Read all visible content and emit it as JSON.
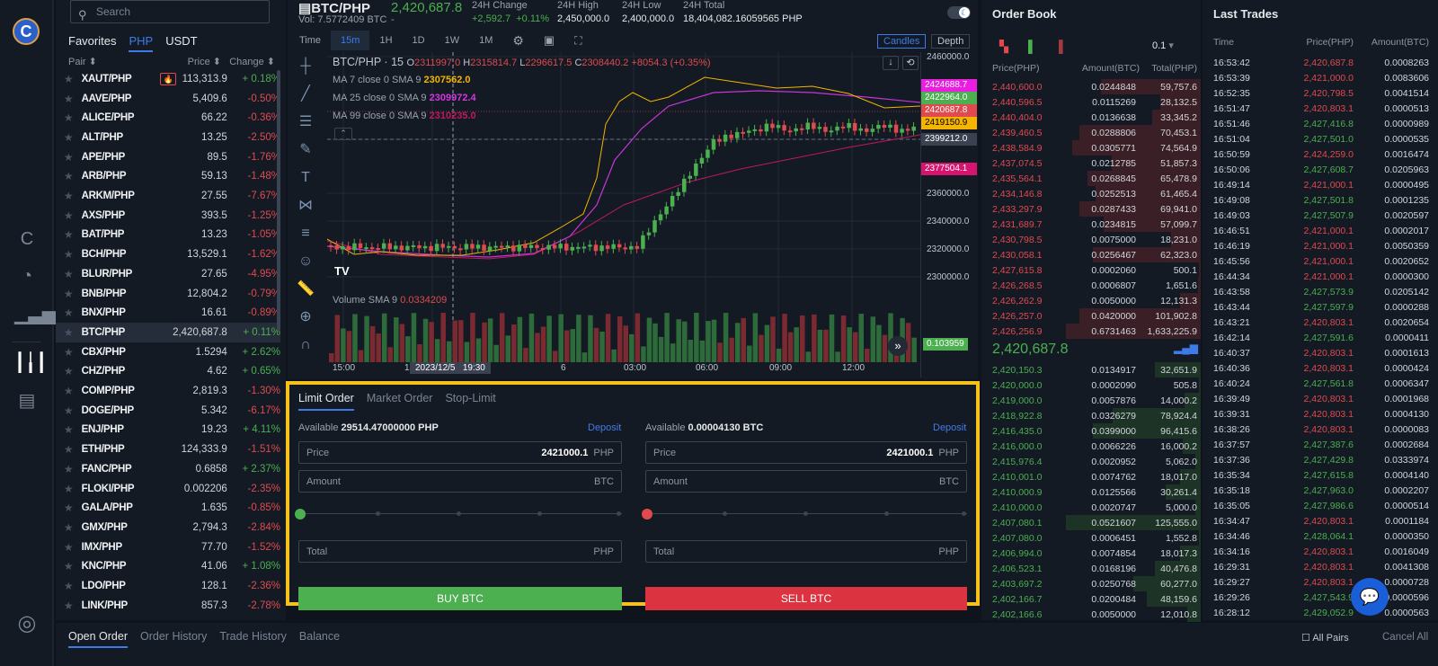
{
  "rail": {
    "logo": "C",
    "icons": [
      "coin-icon",
      "portfolio-pie-icon",
      "bar-stats-icon",
      "candles-trade-icon",
      "ledger-document-icon",
      "user-profile-icon"
    ]
  },
  "market": {
    "search_placeholder": "Search",
    "tabs": [
      {
        "label": "Favorites"
      },
      {
        "label": "PHP",
        "active": true
      },
      {
        "label": "USDT"
      }
    ],
    "headers": {
      "pair": "Pair ⬍",
      "price": "Price ⬍",
      "change": "Change ⬍"
    },
    "rows": [
      {
        "pair": "XAUT/PHP",
        "price": "113,313.9",
        "change": "+ 0.18%",
        "up": true,
        "hot": true
      },
      {
        "pair": "AAVE/PHP",
        "price": "5,409.6",
        "change": "-0.50%",
        "up": false
      },
      {
        "pair": "ALICE/PHP",
        "price": "66.22",
        "change": "-0.36%",
        "up": false
      },
      {
        "pair": "ALT/PHP",
        "price": "13.25",
        "change": "-2.50%",
        "up": false
      },
      {
        "pair": "APE/PHP",
        "price": "89.5",
        "change": "-1.76%",
        "up": false
      },
      {
        "pair": "ARB/PHP",
        "price": "59.13",
        "change": "-1.48%",
        "up": false
      },
      {
        "pair": "ARKM/PHP",
        "price": "27.55",
        "change": "-7.67%",
        "up": false
      },
      {
        "pair": "AXS/PHP",
        "price": "393.5",
        "change": "-1.25%",
        "up": false
      },
      {
        "pair": "BAT/PHP",
        "price": "13.23",
        "change": "-1.05%",
        "up": false
      },
      {
        "pair": "BCH/PHP",
        "price": "13,529.1",
        "change": "-1.62%",
        "up": false
      },
      {
        "pair": "BLUR/PHP",
        "price": "27.65",
        "change": "-4.95%",
        "up": false
      },
      {
        "pair": "BNB/PHP",
        "price": "12,804.2",
        "change": "-0.79%",
        "up": false
      },
      {
        "pair": "BNX/PHP",
        "price": "16.61",
        "change": "-0.89%",
        "up": false
      },
      {
        "pair": "BTC/PHP",
        "price": "2,420,687.8",
        "change": "+ 0.11%",
        "up": true,
        "selected": true
      },
      {
        "pair": "CBX/PHP",
        "price": "1.5294",
        "change": "+ 2.62%",
        "up": true
      },
      {
        "pair": "CHZ/PHP",
        "price": "4.62",
        "change": "+ 0.65%",
        "up": true
      },
      {
        "pair": "COMP/PHP",
        "price": "2,819.3",
        "change": "-1.30%",
        "up": false
      },
      {
        "pair": "DOGE/PHP",
        "price": "5.342",
        "change": "-6.17%",
        "up": false
      },
      {
        "pair": "ENJ/PHP",
        "price": "19.23",
        "change": "+ 4.11%",
        "up": true
      },
      {
        "pair": "ETH/PHP",
        "price": "124,333.9",
        "change": "-1.51%",
        "up": false
      },
      {
        "pair": "FANC/PHP",
        "price": "0.6858",
        "change": "+ 2.37%",
        "up": true
      },
      {
        "pair": "FLOKI/PHP",
        "price": "0.002206",
        "change": "-2.35%",
        "up": false
      },
      {
        "pair": "GALA/PHP",
        "price": "1.635",
        "change": "-0.85%",
        "up": false
      },
      {
        "pair": "GMX/PHP",
        "price": "2,794.3",
        "change": "-2.84%",
        "up": false
      },
      {
        "pair": "IMX/PHP",
        "price": "77.70",
        "change": "-1.52%",
        "up": false
      },
      {
        "pair": "KNC/PHP",
        "price": "41.06",
        "change": "+ 1.08%",
        "up": true
      },
      {
        "pair": "LDO/PHP",
        "price": "128.1",
        "change": "-2.36%",
        "up": false
      },
      {
        "pair": "LINK/PHP",
        "price": "857.3",
        "change": "-2.78%",
        "up": false
      }
    ]
  },
  "ticker": {
    "pair": "BTC/PHP",
    "volume": "Vol: 7.5772409 BTC",
    "last_price": "2,420,687.8",
    "last_sub": "-",
    "change_label": "24H Change",
    "change_abs": "+2,592.7",
    "change_pct": "+0.11%",
    "high_label": "24H High",
    "high": "2,450,000.0",
    "low_label": "24H Low",
    "low": "2,400,000.0",
    "total_label": "24H Total",
    "total": "18,404,082.16059565 PHP"
  },
  "chart_toolbar": {
    "timeframes": [
      {
        "label": "Time"
      },
      {
        "label": "15m",
        "active": true
      },
      {
        "label": "1H"
      },
      {
        "label": "1D"
      },
      {
        "label": "1W"
      },
      {
        "label": "1M"
      }
    ],
    "candles_label": "Candles",
    "depth_label": "Depth"
  },
  "chart": {
    "symbol": "BTC/PHP",
    "interval": "15",
    "o_label": "O",
    "o": "2311997.0",
    "h_label": "H",
    "h": "2315814.7",
    "l_label": "L",
    "l": "2296617.5",
    "c_label": "C",
    "c": "2308440.2",
    "delta": "+8054.3 (+0.35%)",
    "ma7_label": "MA 7 close 0 SMA 9",
    "ma7": "2307562.0",
    "ma25_label": "MA 25 close 0 SMA 9",
    "ma25": "2309972.4",
    "ma99_label": "MA 99 close 0 SMA 9",
    "ma99": "2310235.0",
    "volume_label": "Volume",
    "volume_sma": "SMA 9",
    "volume_val": "0.0334209",
    "y_ticks": [
      "2460000.0",
      "2360000.0",
      "2340000.0",
      "2320000.0",
      "2300000.0"
    ],
    "tags": [
      {
        "value": "2424688.7",
        "color": "#e91ee0"
      },
      {
        "value": "2422964.0",
        "color": "#4caf50"
      },
      {
        "value": "2420687.8",
        "color": "#e04a4f"
      },
      {
        "value": "2419150.9",
        "color": "#f4b400"
      },
      {
        "value": "2399212.0",
        "color": "#3a4150"
      },
      {
        "value": "2377504.1",
        "color": "#d6136f"
      }
    ],
    "volume_tag": "0.103959",
    "x_ticks": [
      "15:00",
      "1",
      "6",
      "03:00",
      "06:00",
      "09:00",
      "12:00"
    ],
    "crosshair_label": "2023/12/5   19:30"
  },
  "order_form": {
    "tabs": [
      {
        "label": "Limit Order",
        "active": true
      },
      {
        "label": "Market Order"
      },
      {
        "label": "Stop-Limit"
      }
    ],
    "buy": {
      "available_label": "Available",
      "available": "29514.47000000 PHP",
      "deposit": "Deposit",
      "price_label": "Price",
      "price": "2421000.1",
      "price_unit": "PHP",
      "amount_label": "Amount",
      "amount_unit": "BTC",
      "total_label": "Total",
      "total_unit": "PHP",
      "button": "BUY BTC"
    },
    "sell": {
      "available_label": "Available",
      "available": "0.00004130 BTC",
      "deposit": "Deposit",
      "price_label": "Price",
      "price": "2421000.1",
      "price_unit": "PHP",
      "amount_label": "Amount",
      "amount_unit": "BTC",
      "total_label": "Total",
      "total_unit": "PHP",
      "button": "SELL BTC"
    }
  },
  "order_book": {
    "title": "Order Book",
    "precision": "0.1",
    "headers": {
      "price": "Price(PHP)",
      "amount": "Amount(BTC)",
      "total": "Total(PHP)"
    },
    "asks": [
      {
        "price": "2,440,600.0",
        "amount": "0.0244848",
        "total": "59,757.6",
        "depth": 0.74
      },
      {
        "price": "2,440,596.5",
        "amount": "0.0115269",
        "total": "28,132.5",
        "depth": 0.3
      },
      {
        "price": "2,440,404.0",
        "amount": "0.0136638",
        "total": "33,345.2",
        "depth": 0.36
      },
      {
        "price": "2,439,460.5",
        "amount": "0.0288806",
        "total": "70,453.1",
        "depth": 0.9
      },
      {
        "price": "2,438,584.9",
        "amount": "0.0305771",
        "total": "74,564.9",
        "depth": 0.95
      },
      {
        "price": "2,437,074.5",
        "amount": "0.0212785",
        "total": "51,857.3",
        "depth": 0.66
      },
      {
        "price": "2,435,564.1",
        "amount": "0.0268845",
        "total": "65,478.9",
        "depth": 0.84
      },
      {
        "price": "2,434,146.8",
        "amount": "0.0252513",
        "total": "61,465.4",
        "depth": 0.78
      },
      {
        "price": "2,433,297.9",
        "amount": "0.0287433",
        "total": "69,941.0",
        "depth": 0.9
      },
      {
        "price": "2,431,689.7",
        "amount": "0.0234815",
        "total": "57,099.7",
        "depth": 0.72
      },
      {
        "price": "2,430,798.5",
        "amount": "0.0075000",
        "total": "18,231.0",
        "depth": 0.22
      },
      {
        "price": "2,430,058.1",
        "amount": "0.0256467",
        "total": "62,323.0",
        "depth": 0.8
      },
      {
        "price": "2,427,615.8",
        "amount": "0.0002060",
        "total": "500.1",
        "depth": 0.01
      },
      {
        "price": "2,426,268.5",
        "amount": "0.0006807",
        "total": "1,651.6",
        "depth": 0.02
      },
      {
        "price": "2,426,262.9",
        "amount": "0.0050000",
        "total": "12,131.3",
        "depth": 0.15
      },
      {
        "price": "2,426,257.0",
        "amount": "0.0420000",
        "total": "101,902.8",
        "depth": 0.9
      },
      {
        "price": "2,426,256.9",
        "amount": "0.6731463",
        "total": "1,633,225.9",
        "depth": 1.0
      }
    ],
    "mid_price": "2,420,687.8",
    "bids": [
      {
        "price": "2,420,150.3",
        "amount": "0.0134917",
        "total": "32,651.9",
        "depth": 0.34
      },
      {
        "price": "2,420,000.0",
        "amount": "0.0002090",
        "total": "505.8",
        "depth": 0.01
      },
      {
        "price": "2,419,000.0",
        "amount": "0.0057876",
        "total": "14,000.2",
        "depth": 0.12
      },
      {
        "price": "2,418,922.8",
        "amount": "0.0326279",
        "total": "78,924.4",
        "depth": 0.65
      },
      {
        "price": "2,416,435.0",
        "amount": "0.0399000",
        "total": "96,415.6",
        "depth": 0.8
      },
      {
        "price": "2,416,000.0",
        "amount": "0.0066226",
        "total": "16,000.2",
        "depth": 0.13
      },
      {
        "price": "2,415,976.4",
        "amount": "0.0020952",
        "total": "5,062.0",
        "depth": 0.04
      },
      {
        "price": "2,410,001.0",
        "amount": "0.0074762",
        "total": "18,017.0",
        "depth": 0.15
      },
      {
        "price": "2,410,000.9",
        "amount": "0.0125566",
        "total": "30,261.4",
        "depth": 0.26
      },
      {
        "price": "2,410,000.0",
        "amount": "0.0020747",
        "total": "5,000.0",
        "depth": 0.04
      },
      {
        "price": "2,407,080.1",
        "amount": "0.0521607",
        "total": "125,555.0",
        "depth": 1.0
      },
      {
        "price": "2,407,080.0",
        "amount": "0.0006451",
        "total": "1,552.8",
        "depth": 0.01
      },
      {
        "price": "2,406,994.0",
        "amount": "0.0074854",
        "total": "18,017.3",
        "depth": 0.15
      },
      {
        "price": "2,406,523.1",
        "amount": "0.0168196",
        "total": "40,476.8",
        "depth": 0.34
      },
      {
        "price": "2,403,697.2",
        "amount": "0.0250768",
        "total": "60,277.0",
        "depth": 0.5
      },
      {
        "price": "2,402,166.7",
        "amount": "0.0200484",
        "total": "48,159.6",
        "depth": 0.4
      },
      {
        "price": "2,402,166.6",
        "amount": "0.0050000",
        "total": "12,010.8",
        "depth": 0.1
      }
    ]
  },
  "last_trades": {
    "title": "Last Trades",
    "headers": {
      "time": "Time",
      "price": "Price(PHP)",
      "amount": "Amount(BTC)"
    },
    "rows": [
      {
        "time": "16:53:42",
        "price": "2,420,687.8",
        "amount": "0.0008263",
        "up": false
      },
      {
        "time": "16:53:39",
        "price": "2,421,000.0",
        "amount": "0.0083606",
        "up": false
      },
      {
        "time": "16:52:35",
        "price": "2,420,798.5",
        "amount": "0.0041514",
        "up": false
      },
      {
        "time": "16:51:47",
        "price": "2,420,803.1",
        "amount": "0.0000513",
        "up": false
      },
      {
        "time": "16:51:46",
        "price": "2,427,416.8",
        "amount": "0.0000989",
        "up": true
      },
      {
        "time": "16:51:04",
        "price": "2,427,501.0",
        "amount": "0.0000535",
        "up": true
      },
      {
        "time": "16:50:59",
        "price": "2,424,259.0",
        "amount": "0.0016474",
        "up": false
      },
      {
        "time": "16:50:06",
        "price": "2,427,608.7",
        "amount": "0.0205963",
        "up": true
      },
      {
        "time": "16:49:14",
        "price": "2,421,000.1",
        "amount": "0.0000495",
        "up": false
      },
      {
        "time": "16:49:08",
        "price": "2,427,501.8",
        "amount": "0.0001235",
        "up": true
      },
      {
        "time": "16:49:03",
        "price": "2,427,507.9",
        "amount": "0.0020597",
        "up": true
      },
      {
        "time": "16:46:51",
        "price": "2,421,000.1",
        "amount": "0.0002017",
        "up": false
      },
      {
        "time": "16:46:19",
        "price": "2,421,000.1",
        "amount": "0.0050359",
        "up": false
      },
      {
        "time": "16:45:56",
        "price": "2,421,000.1",
        "amount": "0.0020652",
        "up": false
      },
      {
        "time": "16:44:34",
        "price": "2,421,000.1",
        "amount": "0.0000300",
        "up": false
      },
      {
        "time": "16:43:58",
        "price": "2,427,573.9",
        "amount": "0.0205142",
        "up": true
      },
      {
        "time": "16:43:44",
        "price": "2,427,597.9",
        "amount": "0.0000288",
        "up": true
      },
      {
        "time": "16:43:21",
        "price": "2,420,803.1",
        "amount": "0.0020654",
        "up": false
      },
      {
        "time": "16:42:14",
        "price": "2,427,591.6",
        "amount": "0.0000411",
        "up": true
      },
      {
        "time": "16:40:37",
        "price": "2,420,803.1",
        "amount": "0.0001613",
        "up": false
      },
      {
        "time": "16:40:36",
        "price": "2,420,803.1",
        "amount": "0.0000424",
        "up": false
      },
      {
        "time": "16:40:24",
        "price": "2,427,561.8",
        "amount": "0.0006347",
        "up": true
      },
      {
        "time": "16:39:49",
        "price": "2,420,803.1",
        "amount": "0.0001968",
        "up": false
      },
      {
        "time": "16:39:31",
        "price": "2,420,803.1",
        "amount": "0.0004130",
        "up": false
      },
      {
        "time": "16:38:26",
        "price": "2,420,803.1",
        "amount": "0.0000083",
        "up": false
      },
      {
        "time": "16:37:57",
        "price": "2,427,387.6",
        "amount": "0.0002684",
        "up": true
      },
      {
        "time": "16:37:36",
        "price": "2,427,429.8",
        "amount": "0.0333974",
        "up": true
      },
      {
        "time": "16:35:34",
        "price": "2,427,615.8",
        "amount": "0.0004140",
        "up": true
      },
      {
        "time": "16:35:18",
        "price": "2,427,963.0",
        "amount": "0.0002207",
        "up": true
      },
      {
        "time": "16:35:05",
        "price": "2,427,986.6",
        "amount": "0.0000514",
        "up": true
      },
      {
        "time": "16:34:47",
        "price": "2,420,803.1",
        "amount": "0.0001184",
        "up": false
      },
      {
        "time": "16:34:46",
        "price": "2,428,064.1",
        "amount": "0.0000350",
        "up": true
      },
      {
        "time": "16:34:16",
        "price": "2,420,803.1",
        "amount": "0.0016049",
        "up": false
      },
      {
        "time": "16:29:31",
        "price": "2,420,803.1",
        "amount": "0.0041308",
        "up": false
      },
      {
        "time": "16:29:27",
        "price": "2,420,803.1",
        "amount": "0.0000728",
        "up": false
      },
      {
        "time": "16:29:26",
        "price": "2,427,543.9",
        "amount": "0.0000596",
        "up": true
      },
      {
        "time": "16:28:12",
        "price": "2,429,052.9",
        "amount": "0.0000563",
        "up": true
      }
    ]
  },
  "bottom": {
    "tabs": [
      {
        "label": "Open Order",
        "active": true
      },
      {
        "label": "Order History"
      },
      {
        "label": "Trade History"
      },
      {
        "label": "Balance"
      }
    ],
    "all_pairs": "All Pairs",
    "cancel_all": "Cancel All"
  },
  "colors": {
    "up": "#4caf50",
    "down": "#e04a4f",
    "accent": "#3f7be8",
    "highlight": "#f4c21b"
  }
}
